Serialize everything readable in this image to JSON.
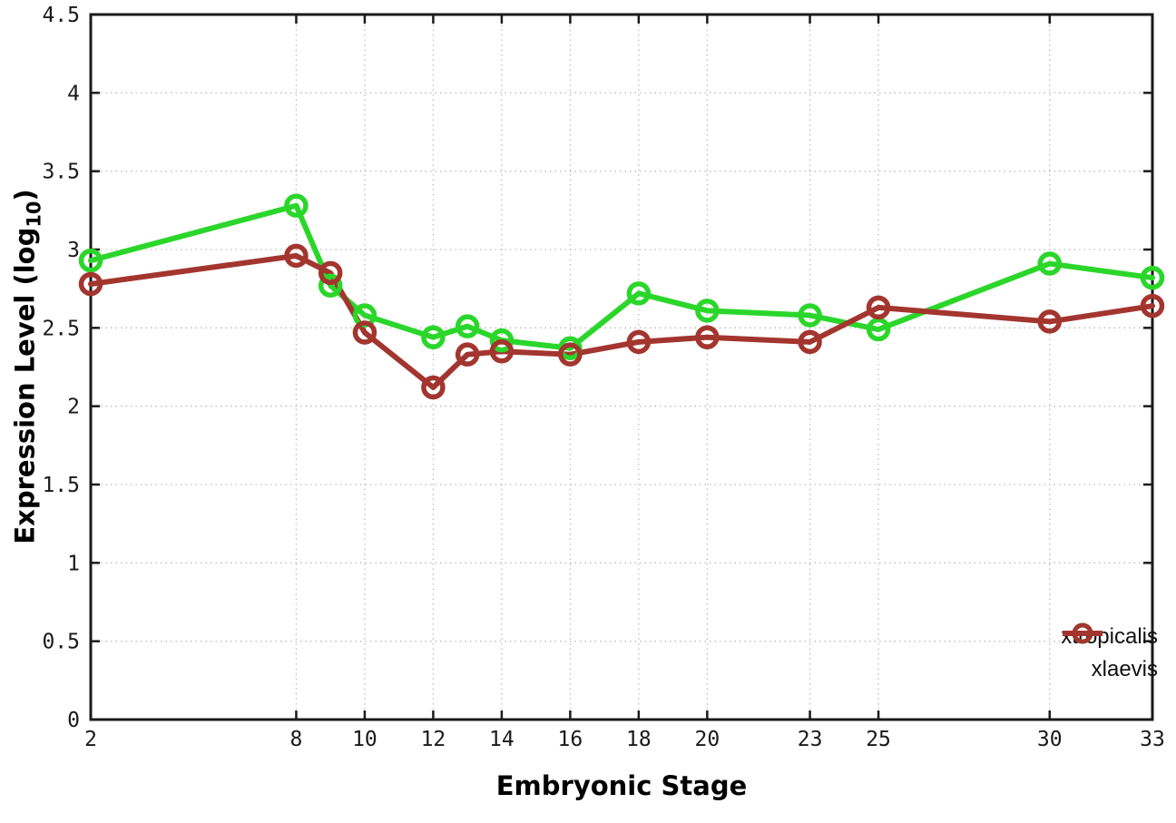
{
  "chart_data": {
    "type": "line",
    "title": "",
    "xlabel": "Embryonic Stage",
    "ylabel": "Expression Level (log10)",
    "ylabel_parts": {
      "prefix": "Expression Level (log",
      "subscript": "10",
      "suffix": ")"
    },
    "x": [
      2,
      8,
      9,
      10,
      12,
      13,
      14,
      16,
      18,
      20,
      23,
      25,
      30,
      33
    ],
    "series": [
      {
        "name": "xtropicalis",
        "color": "#2bd62b",
        "values": [
          2.93,
          3.28,
          2.77,
          2.58,
          2.44,
          2.51,
          2.42,
          2.37,
          2.72,
          2.61,
          2.58,
          2.49,
          2.91,
          2.82
        ]
      },
      {
        "name": "xlaevis",
        "color": "#a3352f",
        "values": [
          2.78,
          2.96,
          2.85,
          2.47,
          2.12,
          2.33,
          2.35,
          2.33,
          2.41,
          2.44,
          2.41,
          2.63,
          2.54,
          2.64
        ]
      }
    ],
    "xlim": [
      2,
      33
    ],
    "ylim": [
      0,
      4.5
    ],
    "x_ticks": [
      2,
      8,
      10,
      12,
      14,
      16,
      18,
      20,
      23,
      25,
      30,
      33
    ],
    "y_ticks": [
      0,
      0.5,
      1,
      1.5,
      2,
      2.5,
      3,
      3.5,
      4,
      4.5
    ],
    "grid": true,
    "marker": "open-circle",
    "legend_position": "inside-bottom-right",
    "colors": {
      "border": "#1a1a1a",
      "grid": "#bcbcbc",
      "tick_text": "#1a1a1a"
    }
  }
}
